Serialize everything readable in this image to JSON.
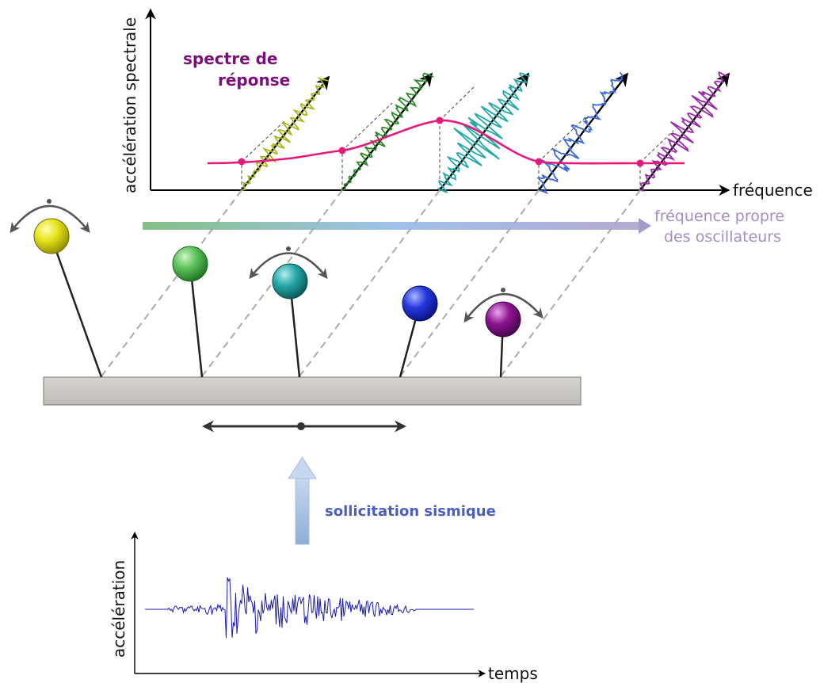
{
  "labels": {
    "response_spectrum": [
      "spectre de",
      "réponse"
    ],
    "spectral_acceleration_axis": "accélération spectrale",
    "frequency_axis": "fréquence",
    "natural_frequency": [
      "fréquence propre",
      "des oscillateurs"
    ],
    "seismic_loading": "sollicitation sismique",
    "acceleration_axis": "accélération",
    "time_axis": "temps"
  },
  "colors": {
    "spectrum_title": "#7a0f7a",
    "spectrum_curve": "#e8187a",
    "natural_frequency": "#a58cc4",
    "seismic_loading": "#4a5fc1",
    "accelerogram": "#1a1aa8",
    "oscillators": [
      "#d4d40a",
      "#45b545",
      "#1a9c9c",
      "#1a2fd6",
      "#8a0f8a"
    ],
    "response_traces": [
      "#a8b81a",
      "#2a8c2a",
      "#20a8a8",
      "#3a6ad8",
      "#9a2aaa"
    ]
  },
  "icons": {
    "rotation_arrows": "curved-double-arrow-icon",
    "horizontal_motion": "double-headed-arrow-icon",
    "upward_arrow": "up-arrow-icon"
  }
}
